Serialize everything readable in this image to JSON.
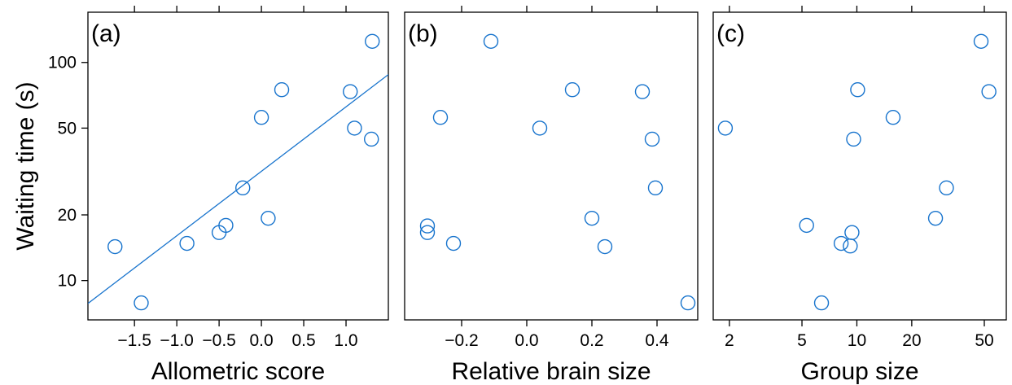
{
  "chart_data": [
    {
      "panel": "(a)",
      "type": "scatter",
      "xlabel": "Allometric score",
      "ylabel": "Waiting time (s)",
      "x_scale": "linear",
      "y_scale": "log",
      "xlim": [
        -2.05,
        1.5
      ],
      "ylim": [
        6.6,
        170
      ],
      "x_ticks": [
        -1.5,
        -1.0,
        -0.5,
        0.0,
        0.5,
        1.0
      ],
      "x_tick_labels": [
        "−1.5",
        "−1.0",
        "−0.5",
        "0.0",
        "0.5",
        "1.0"
      ],
      "y_ticks": [
        10,
        20,
        50,
        100
      ],
      "y_tick_labels": [
        "10",
        "20",
        "50",
        "100"
      ],
      "points": [
        {
          "x": -1.73,
          "y": 14.3
        },
        {
          "x": -1.42,
          "y": 7.9
        },
        {
          "x": -0.88,
          "y": 14.8
        },
        {
          "x": -0.5,
          "y": 16.6
        },
        {
          "x": -0.42,
          "y": 17.9
        },
        {
          "x": -0.22,
          "y": 26.6
        },
        {
          "x": 0.0,
          "y": 56.0
        },
        {
          "x": 0.08,
          "y": 19.3
        },
        {
          "x": 0.24,
          "y": 75.0
        },
        {
          "x": 1.05,
          "y": 73.5
        },
        {
          "x": 1.1,
          "y": 50.0
        },
        {
          "x": 1.3,
          "y": 44.5
        },
        {
          "x": 1.31,
          "y": 125.0
        }
      ],
      "fit_line": {
        "x": [
          -2.05,
          1.5
        ],
        "y": [
          7.85,
          88.0
        ]
      },
      "color": "#1874CD"
    },
    {
      "panel": "(b)",
      "type": "scatter",
      "xlabel": "Relative brain size",
      "x_scale": "linear",
      "y_scale": "log",
      "xlim": [
        -0.375,
        0.525
      ],
      "ylim": [
        6.6,
        170
      ],
      "x_ticks": [
        -0.2,
        0.0,
        0.2,
        0.4
      ],
      "x_tick_labels": [
        "−0.2",
        "0.0",
        "0.2",
        "0.4"
      ],
      "points": [
        {
          "x": -0.305,
          "y": 17.8
        },
        {
          "x": -0.305,
          "y": 16.6
        },
        {
          "x": -0.265,
          "y": 56.0
        },
        {
          "x": -0.225,
          "y": 14.8
        },
        {
          "x": -0.11,
          "y": 125.0
        },
        {
          "x": 0.04,
          "y": 50.0
        },
        {
          "x": 0.14,
          "y": 75.0
        },
        {
          "x": 0.2,
          "y": 19.3
        },
        {
          "x": 0.24,
          "y": 14.3
        },
        {
          "x": 0.355,
          "y": 73.5
        },
        {
          "x": 0.385,
          "y": 44.5
        },
        {
          "x": 0.395,
          "y": 26.6
        },
        {
          "x": 0.495,
          "y": 7.9
        }
      ],
      "color": "#1874CD"
    },
    {
      "panel": "(c)",
      "type": "scatter",
      "xlabel": "Group size",
      "x_scale": "log",
      "y_scale": "log",
      "xlim": [
        1.63,
        66
      ],
      "ylim": [
        6.6,
        170
      ],
      "x_ticks": [
        2,
        5,
        10,
        20,
        50
      ],
      "x_tick_labels": [
        "2",
        "5",
        "10",
        "20",
        "50"
      ],
      "points": [
        {
          "x": 1.9,
          "y": 50.0
        },
        {
          "x": 5.3,
          "y": 17.9
        },
        {
          "x": 6.4,
          "y": 7.9
        },
        {
          "x": 8.2,
          "y": 14.8
        },
        {
          "x": 9.2,
          "y": 14.4
        },
        {
          "x": 9.4,
          "y": 16.6
        },
        {
          "x": 9.6,
          "y": 44.5
        },
        {
          "x": 10.1,
          "y": 75.0
        },
        {
          "x": 15.8,
          "y": 56.0
        },
        {
          "x": 27.0,
          "y": 19.3
        },
        {
          "x": 31.0,
          "y": 26.6
        },
        {
          "x": 48.0,
          "y": 125.0
        },
        {
          "x": 53.0,
          "y": 73.5
        }
      ],
      "color": "#1874CD"
    }
  ]
}
